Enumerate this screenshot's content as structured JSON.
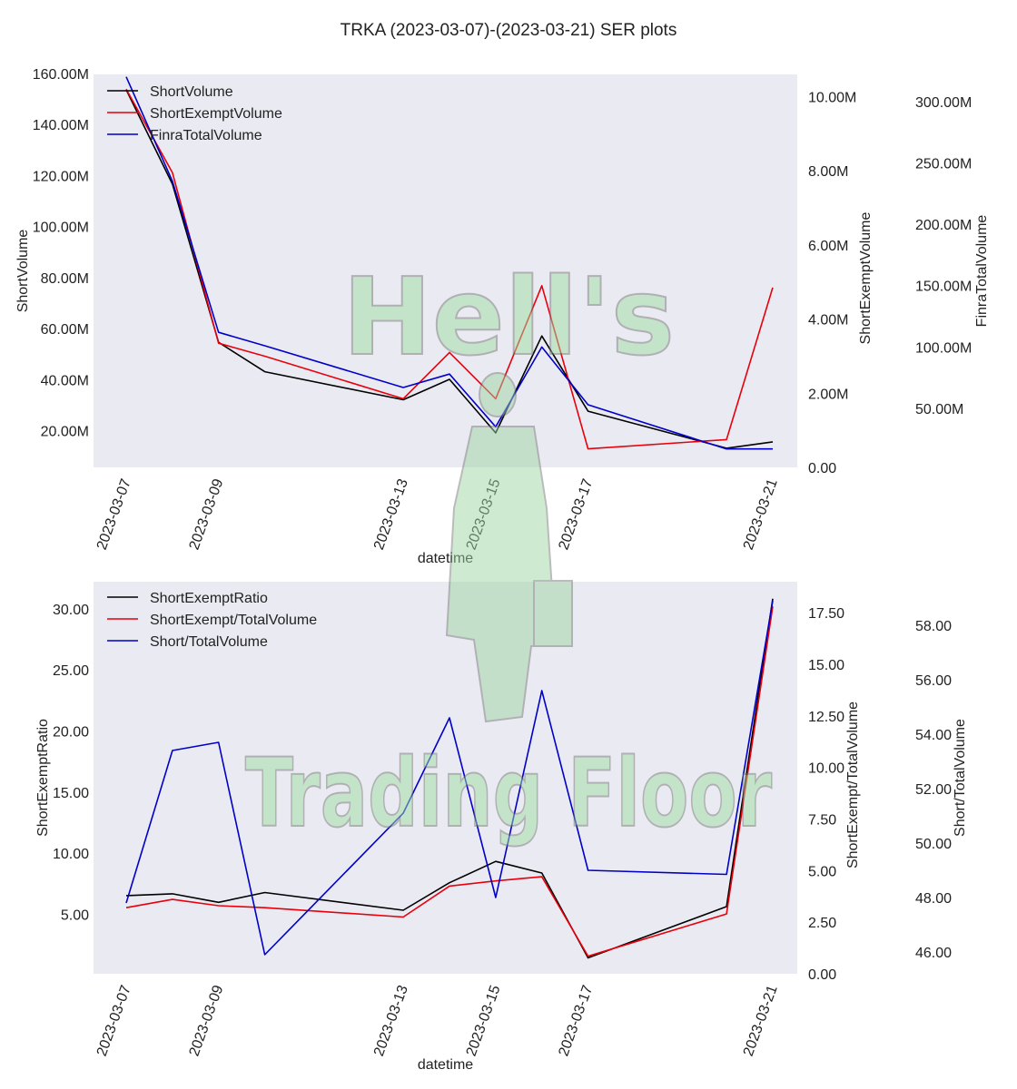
{
  "title": "TRKA (2023-03-07)-(2023-03-21) SER plots",
  "watermark": {
    "line1": "Hell's",
    "line2": "Trading Floor"
  },
  "colors": {
    "black": "#000000",
    "red": "#e8000b",
    "blue": "#0000c8",
    "plot_bg": "#eaeaf2"
  },
  "chart_data": [
    {
      "type": "line",
      "x": [
        "2023-03-07",
        "2023-03-08",
        "2023-03-09",
        "2023-03-10",
        "2023-03-13",
        "2023-03-14",
        "2023-03-15",
        "2023-03-16",
        "2023-03-17",
        "2023-03-20",
        "2023-03-21"
      ],
      "xlabel": "datetime",
      "xticks": [
        "2023-03-07",
        "2023-03-09",
        "2023-03-13",
        "2023-03-15",
        "2023-03-17",
        "2023-03-21"
      ],
      "legend": "top-left",
      "series": [
        {
          "name": "ShortVolume",
          "color": "black",
          "axis": "left",
          "values": [
            154.0,
            117.0,
            55.0,
            43.5,
            32.5,
            40.5,
            19.5,
            57.5,
            28.0,
            13.5,
            16.0
          ]
        },
        {
          "name": "ShortExemptVolume",
          "color": "red",
          "axis": "right1",
          "values": [
            10.2,
            7.95,
            3.35,
            3.0,
            1.85,
            3.1,
            1.85,
            4.9,
            0.5,
            0.75,
            4.85
          ]
        },
        {
          "name": "FinraTotalVolume",
          "color": "blue",
          "axis": "right2",
          "values": [
            320.0,
            235.0,
            112.0,
            101.0,
            67.0,
            78.0,
            35.0,
            100.0,
            53.0,
            17.0,
            17.0
          ]
        }
      ],
      "axes": {
        "left": {
          "label": "ShortVolume",
          "min": 6.0,
          "max": 160.0,
          "ticks": [
            20,
            40,
            60,
            80,
            100,
            120,
            140,
            160
          ],
          "tick_labels": [
            "20.00M",
            "40.00M",
            "60.00M",
            "80.00M",
            "100.00M",
            "120.00M",
            "140.00M",
            "160.00M"
          ]
        },
        "right1": {
          "label": "ShortExemptVolume",
          "min": 0.0,
          "max": 10.6,
          "ticks": [
            0,
            2,
            4,
            6,
            8,
            10
          ],
          "tick_labels": [
            "0.00",
            "2.00M",
            "4.00M",
            "6.00M",
            "8.00M",
            "10.00M"
          ]
        },
        "right2": {
          "label": "FinraTotalVolume",
          "min": 2.0,
          "max": 322.0,
          "ticks": [
            50,
            100,
            150,
            200,
            250,
            300
          ],
          "tick_labels": [
            "50.00M",
            "100.00M",
            "150.00M",
            "200.00M",
            "250.00M",
            "300.00M"
          ]
        }
      }
    },
    {
      "type": "line",
      "x": [
        "2023-03-07",
        "2023-03-08",
        "2023-03-09",
        "2023-03-10",
        "2023-03-13",
        "2023-03-14",
        "2023-03-15",
        "2023-03-16",
        "2023-03-17",
        "2023-03-20",
        "2023-03-21"
      ],
      "xlabel": "datetime",
      "xticks": [
        "2023-03-07",
        "2023-03-09",
        "2023-03-13",
        "2023-03-15",
        "2023-03-17",
        "2023-03-21"
      ],
      "legend": "top-left",
      "series": [
        {
          "name": "ShortExemptRatio",
          "color": "black",
          "axis": "left",
          "values": [
            6.6,
            6.75,
            6.05,
            6.85,
            5.4,
            7.65,
            9.4,
            8.45,
            1.5,
            5.7,
            30.9
          ]
        },
        {
          "name": "ShortExempt/TotalVolume",
          "color": "red",
          "axis": "right1",
          "values": [
            3.2,
            3.6,
            3.3,
            3.2,
            2.75,
            4.25,
            4.5,
            4.7,
            0.85,
            2.9,
            17.8
          ]
        },
        {
          "name": "Short/TotalVolume",
          "color": "blue",
          "axis": "right2",
          "values": [
            47.8,
            53.4,
            53.7,
            45.9,
            51.1,
            54.6,
            48.0,
            55.6,
            49.0,
            48.85,
            58.9
          ]
        }
      ],
      "axes": {
        "left": {
          "label": "ShortExemptRatio",
          "min": 0.2,
          "max": 32.3,
          "ticks": [
            5,
            10,
            15,
            20,
            25,
            30
          ],
          "tick_labels": [
            "5.00",
            "10.00",
            "15.00",
            "20.00",
            "25.00",
            "30.00"
          ]
        },
        "right1": {
          "label": "ShortExempt/TotalVolume",
          "min": 0.0,
          "max": 19.0,
          "ticks": [
            0,
            2.5,
            5,
            7.5,
            10,
            12.5,
            15,
            17.5
          ],
          "tick_labels": [
            "0.00",
            "2.50",
            "5.00",
            "7.50",
            "10.00",
            "12.50",
            "15.00",
            "17.50"
          ]
        },
        "right2": {
          "label": "Short/TotalVolume",
          "min": 45.2,
          "max": 59.6,
          "ticks": [
            46,
            48,
            50,
            52,
            54,
            56,
            58
          ],
          "tick_labels": [
            "46.00",
            "48.00",
            "50.00",
            "52.00",
            "54.00",
            "56.00",
            "58.00"
          ]
        }
      }
    }
  ]
}
